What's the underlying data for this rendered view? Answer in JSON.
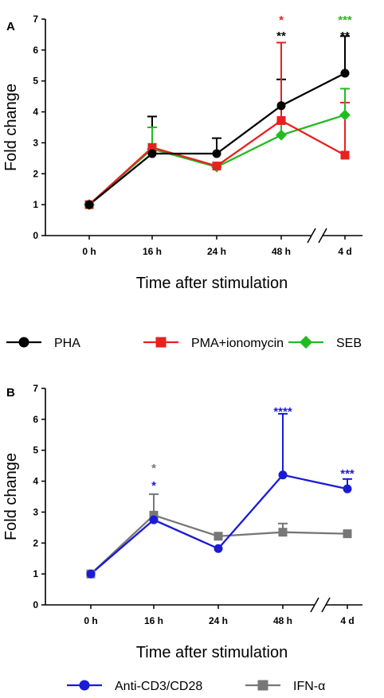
{
  "colors": {
    "pha": "#000000",
    "pma": "#e8211f",
    "seb": "#22bb22",
    "cd3": "#1b1bd6",
    "ifn": "#777777"
  },
  "legend_a": [
    {
      "label": "PHA",
      "marker": "circle",
      "color": "#000000"
    },
    {
      "label": "PMA+ionomycin",
      "marker": "square",
      "color": "#e8211f"
    },
    {
      "label": "SEB",
      "marker": "diamond",
      "color": "#22bb22"
    }
  ],
  "legend_b": [
    {
      "label": "Anti-CD3/CD28",
      "marker": "circle",
      "color": "#1b1bd6"
    },
    {
      "label": "IFN-α",
      "marker": "square",
      "color": "#777777"
    }
  ],
  "chart_data": [
    {
      "panel": "A",
      "type": "line",
      "xlabel": "Time after stimulation",
      "ylabel": "Fold change",
      "categories": [
        "0 h",
        "16 h",
        "24 h",
        "48 h",
        "4 d"
      ],
      "ylim": [
        0,
        7
      ],
      "yticks": [
        "0",
        "1",
        "2",
        "3",
        "4",
        "5",
        "6",
        "7"
      ],
      "axis_break": "between 48 h and 4 d",
      "series": [
        {
          "name": "PHA",
          "color": "#000000",
          "marker": "circle",
          "values": [
            1.0,
            2.65,
            2.65,
            4.2,
            5.25
          ],
          "error_upper": [
            0,
            1.2,
            0.5,
            0.85,
            1.2
          ]
        },
        {
          "name": "PMA+ionomycin",
          "color": "#e8211f",
          "marker": "square",
          "values": [
            1.0,
            2.85,
            2.25,
            3.72,
            2.6
          ],
          "error_upper": [
            0,
            0,
            0,
            2.52,
            1.7
          ]
        },
        {
          "name": "SEB",
          "color": "#22bb22",
          "marker": "diamond",
          "values": [
            1.0,
            2.8,
            2.22,
            3.25,
            3.9
          ],
          "error_upper": [
            0,
            0.7,
            0,
            0.4,
            0.85
          ]
        }
      ],
      "annotations": [
        {
          "text": "**",
          "x": "48 h",
          "color": "#000000",
          "level": 1
        },
        {
          "text": "*",
          "x": "48 h",
          "color": "#e8211f",
          "level": 2
        },
        {
          "text": "**",
          "x": "4 d",
          "color": "#000000",
          "level": 1
        },
        {
          "text": "***",
          "x": "4 d",
          "color": "#22bb22",
          "level": 2
        }
      ]
    },
    {
      "panel": "B",
      "type": "line",
      "xlabel": "Time after stimulation",
      "ylabel": "Fold change",
      "categories": [
        "0 h",
        "16 h",
        "24 h",
        "48 h",
        "4 d"
      ],
      "ylim": [
        0,
        7
      ],
      "yticks": [
        "0",
        "1",
        "2",
        "3",
        "4",
        "5",
        "6",
        "7"
      ],
      "axis_break": "between 48 h and 4 d",
      "series": [
        {
          "name": "Anti-CD3/CD28",
          "color": "#1b1bd6",
          "marker": "circle",
          "values": [
            1.0,
            2.75,
            1.82,
            4.2,
            3.75
          ],
          "error_upper": [
            0,
            0,
            0,
            1.98,
            0.32
          ]
        },
        {
          "name": "IFN-α",
          "color": "#777777",
          "marker": "square",
          "values": [
            1.0,
            2.9,
            2.22,
            2.35,
            2.3
          ],
          "error_upper": [
            0,
            0.68,
            0,
            0.28,
            0
          ]
        }
      ],
      "annotations": [
        {
          "text": "*",
          "x": "16 h",
          "color": "#1b1bd6",
          "level": 1
        },
        {
          "text": "*",
          "x": "16 h",
          "color": "#777777",
          "level": 2
        },
        {
          "text": "****",
          "x": "48 h",
          "color": "#1b1bd6",
          "level": 1
        },
        {
          "text": "***",
          "x": "4 d",
          "color": "#1b1bd6",
          "level": 1
        }
      ]
    }
  ]
}
